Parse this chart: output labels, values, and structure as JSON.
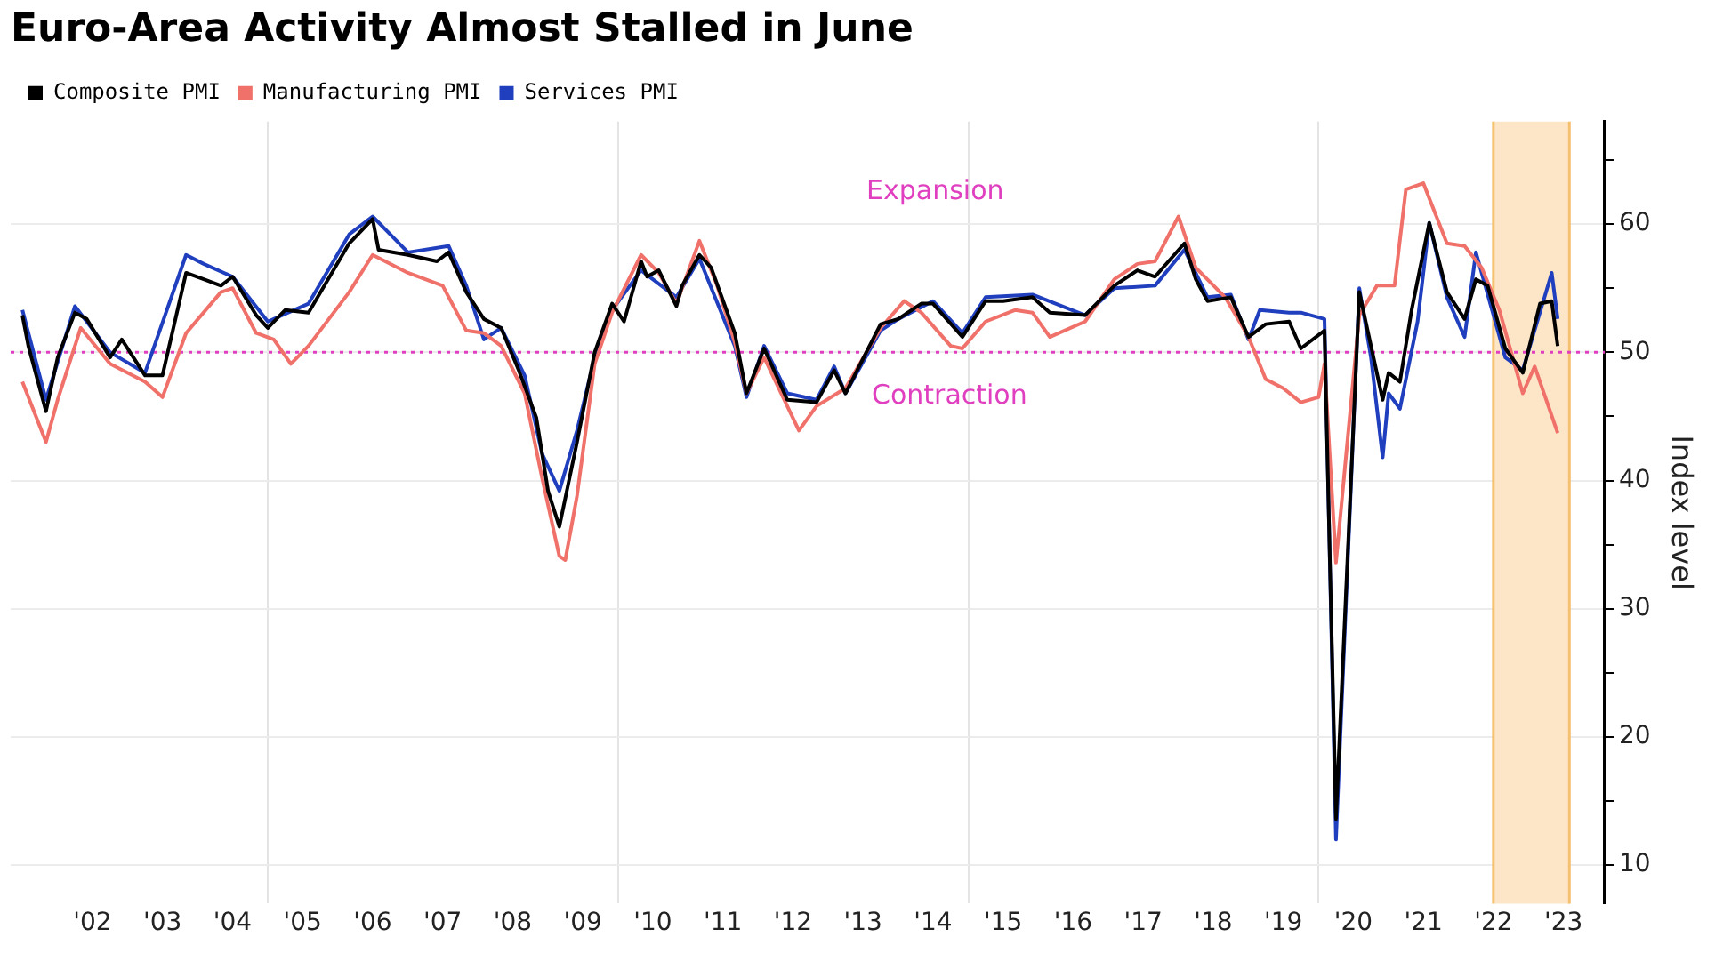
{
  "chart_data": {
    "type": "line",
    "title": "Euro-Area Activity Almost Stalled in June",
    "ylabel": "Index level",
    "xlim": [
      "2001-05",
      "2024-02"
    ],
    "ylim": [
      7,
      68
    ],
    "xticks": [
      {
        "value": "2002-07",
        "label": "'02"
      },
      {
        "value": "2003-07",
        "label": "'03"
      },
      {
        "value": "2004-07",
        "label": "'04"
      },
      {
        "value": "2005-01",
        "label": null
      },
      {
        "value": "2005-07",
        "label": "'05"
      },
      {
        "value": "2006-07",
        "label": "'06"
      },
      {
        "value": "2007-07",
        "label": "'07"
      },
      {
        "value": "2008-07",
        "label": "'08"
      },
      {
        "value": "2009-07",
        "label": "'09"
      },
      {
        "value": "2010-01",
        "label": null
      },
      {
        "value": "2010-07",
        "label": "'10"
      },
      {
        "value": "2011-07",
        "label": "'11"
      },
      {
        "value": "2012-07",
        "label": "'12"
      },
      {
        "value": "2013-07",
        "label": "'13"
      },
      {
        "value": "2014-07",
        "label": "'14"
      },
      {
        "value": "2015-01",
        "label": null
      },
      {
        "value": "2015-07",
        "label": "'15"
      },
      {
        "value": "2016-07",
        "label": "'16"
      },
      {
        "value": "2017-07",
        "label": "'17"
      },
      {
        "value": "2018-07",
        "label": "'18"
      },
      {
        "value": "2019-07",
        "label": "'19"
      },
      {
        "value": "2020-01",
        "label": null
      },
      {
        "value": "2020-07",
        "label": "'20"
      },
      {
        "value": "2021-07",
        "label": "'21"
      },
      {
        "value": "2022-07",
        "label": "'22"
      },
      {
        "value": "2023-07",
        "label": "'23"
      }
    ],
    "yticks": [
      10,
      {
        "value": 15,
        "label": null
      },
      20,
      {
        "value": 25,
        "label": null
      },
      30,
      {
        "value": 35,
        "label": null
      },
      40,
      {
        "value": 45,
        "label": null
      },
      50,
      {
        "value": 55,
        "label": null
      },
      60,
      {
        "value": 65,
        "label": null
      }
    ],
    "grid": true,
    "legend": "top left",
    "line_style": "solid",
    "ref_lines": [
      {
        "axis": "y",
        "value": 50,
        "color": "#e040c0",
        "line_style": "dotted"
      }
    ],
    "bands": [
      {
        "axis": "x",
        "from": "2022-07",
        "to": "2023-08",
        "color": "#fde6c8"
      }
    ],
    "annotations": [
      "Expansion",
      "Contraction"
    ],
    "series": [
      {
        "name": "Composite PMI",
        "color": "#000000",
        "x": [
          "2001-07",
          "2001-08",
          "2001-11",
          "2002-01",
          "2002-04",
          "2002-06",
          "2002-10",
          "2002-12",
          "2003-04",
          "2003-07",
          "2003-11",
          "2004-02",
          "2004-05",
          "2004-07",
          "2004-11",
          "2005-01",
          "2005-04",
          "2005-08",
          "2006-03",
          "2006-07",
          "2006-08",
          "2007-01",
          "2007-06",
          "2007-08",
          "2007-11",
          "2008-02",
          "2008-05",
          "2008-08",
          "2008-11",
          "2009-01",
          "2009-03",
          "2009-06",
          "2009-09",
          "2009-12",
          "2010-02",
          "2010-05",
          "2010-06",
          "2010-08",
          "2010-11",
          "2010-12",
          "2011-03",
          "2011-05",
          "2011-09",
          "2011-11",
          "2012-02",
          "2012-06",
          "2012-11",
          "2013-02",
          "2013-04",
          "2013-10",
          "2014-01",
          "2014-05",
          "2014-07",
          "2014-12",
          "2015-04",
          "2015-07",
          "2015-12",
          "2016-03",
          "2016-09",
          "2017-02",
          "2017-06",
          "2017-09",
          "2018-02",
          "2018-04",
          "2018-06",
          "2018-10",
          "2019-01",
          "2019-04",
          "2019-08",
          "2019-10",
          "2020-02",
          "2020-04",
          "2020-08",
          "2020-10",
          "2020-12",
          "2021-01",
          "2021-03",
          "2021-05",
          "2021-08",
          "2021-11",
          "2022-02",
          "2022-04",
          "2022-06",
          "2022-09",
          "2022-12",
          "2023-03",
          "2023-05",
          "2023-06"
        ],
        "values": [
          52.9,
          50.5,
          45.4,
          49.6,
          53.1,
          52.6,
          49.6,
          51.0,
          48.2,
          48.2,
          56.2,
          55.7,
          55.2,
          55.9,
          52.9,
          51.9,
          53.3,
          53.1,
          58.5,
          60.4,
          58.0,
          57.6,
          57.1,
          57.8,
          54.7,
          52.6,
          51.9,
          48.6,
          44.9,
          39.2,
          36.4,
          43.0,
          50.0,
          53.8,
          52.4,
          57.1,
          55.9,
          56.4,
          53.6,
          55.2,
          57.6,
          56.6,
          51.5,
          46.8,
          50.3,
          46.3,
          46.1,
          48.6,
          46.8,
          52.2,
          52.6,
          53.8,
          53.8,
          51.2,
          54.0,
          54.0,
          54.3,
          53.1,
          52.9,
          55.2,
          56.4,
          55.9,
          58.5,
          55.7,
          54.0,
          54.3,
          51.2,
          52.2,
          52.4,
          50.3,
          51.7,
          13.6,
          54.7,
          50.5,
          46.3,
          48.4,
          47.7,
          53.3,
          60.1,
          54.7,
          52.6,
          55.7,
          55.2,
          50.3,
          48.4,
          53.8,
          54.0,
          50.5
        ]
      },
      {
        "name": "Manufacturing PMI",
        "color": "#f0706a",
        "x": [
          "2001-07",
          "2001-11",
          "2002-01",
          "2002-05",
          "2002-10",
          "2003-04",
          "2003-07",
          "2003-11",
          "2004-05",
          "2004-07",
          "2004-11",
          "2005-02",
          "2005-05",
          "2005-08",
          "2006-03",
          "2006-07",
          "2007-01",
          "2007-07",
          "2007-11",
          "2008-02",
          "2008-05",
          "2008-09",
          "2008-12",
          "2009-03",
          "2009-04",
          "2009-06",
          "2009-09",
          "2009-12",
          "2010-05",
          "2010-08",
          "2010-11",
          "2011-03",
          "2011-06",
          "2011-09",
          "2011-11",
          "2012-02",
          "2012-08",
          "2012-11",
          "2013-04",
          "2013-10",
          "2014-02",
          "2014-05",
          "2014-10",
          "2014-12",
          "2015-04",
          "2015-09",
          "2015-12",
          "2016-03",
          "2016-09",
          "2017-02",
          "2017-06",
          "2017-09",
          "2018-01",
          "2018-04",
          "2018-09",
          "2019-01",
          "2019-04",
          "2019-07",
          "2019-10",
          "2020-01",
          "2020-02",
          "2020-04",
          "2020-08",
          "2020-11",
          "2021-02",
          "2021-04",
          "2021-07",
          "2021-11",
          "2022-02",
          "2022-05",
          "2022-08",
          "2022-12",
          "2023-02",
          "2023-06"
        ],
        "values": [
          47.7,
          43.0,
          46.3,
          51.9,
          49.1,
          47.7,
          46.5,
          51.5,
          54.7,
          55.0,
          51.5,
          51.0,
          49.1,
          50.5,
          54.7,
          57.6,
          56.2,
          55.2,
          51.7,
          51.5,
          50.5,
          46.8,
          40.2,
          34.1,
          33.8,
          38.8,
          49.1,
          53.1,
          57.6,
          56.2,
          53.8,
          58.7,
          55.2,
          50.8,
          46.8,
          49.6,
          43.9,
          45.8,
          47.2,
          51.9,
          54.0,
          53.1,
          50.5,
          50.3,
          52.4,
          53.3,
          53.1,
          51.2,
          52.4,
          55.7,
          56.9,
          57.1,
          60.6,
          56.6,
          54.3,
          51.2,
          47.9,
          47.2,
          46.1,
          46.5,
          49.1,
          33.6,
          52.9,
          55.2,
          55.2,
          62.7,
          63.2,
          58.5,
          58.3,
          56.6,
          53.3,
          46.8,
          48.9,
          43.7
        ]
      },
      {
        "name": "Services PMI",
        "color": "#1f3fbf",
        "x": [
          "2001-07",
          "2001-11",
          "2002-04",
          "2002-10",
          "2003-04",
          "2003-11",
          "2004-02",
          "2004-07",
          "2005-01",
          "2005-08",
          "2006-03",
          "2006-07",
          "2007-01",
          "2007-08",
          "2007-11",
          "2008-02",
          "2008-05",
          "2008-09",
          "2008-12",
          "2009-03",
          "2009-06",
          "2009-09",
          "2009-12",
          "2010-05",
          "2010-11",
          "2011-03",
          "2011-09",
          "2011-11",
          "2012-02",
          "2012-06",
          "2012-11",
          "2013-02",
          "2013-04",
          "2013-10",
          "2014-01",
          "2014-07",
          "2014-12",
          "2015-04",
          "2015-12",
          "2016-09",
          "2017-02",
          "2017-09",
          "2018-02",
          "2018-06",
          "2018-10",
          "2019-01",
          "2019-03",
          "2019-08",
          "2019-10",
          "2020-02",
          "2020-04",
          "2020-08",
          "2020-10",
          "2020-12",
          "2021-01",
          "2021-03",
          "2021-06",
          "2021-08",
          "2021-11",
          "2022-02",
          "2022-04",
          "2022-09",
          "2022-12",
          "2023-05",
          "2023-06"
        ],
        "values": [
          53.3,
          46.3,
          53.6,
          50.0,
          48.4,
          57.6,
          56.9,
          55.9,
          52.4,
          53.8,
          59.2,
          60.6,
          57.8,
          58.3,
          55.2,
          51.0,
          51.9,
          48.2,
          42.1,
          39.2,
          43.9,
          49.6,
          53.3,
          56.4,
          54.3,
          57.3,
          50.5,
          46.5,
          50.5,
          46.8,
          46.3,
          48.9,
          46.8,
          51.7,
          52.6,
          54.0,
          51.5,
          54.3,
          54.5,
          52.9,
          55.0,
          55.2,
          58.0,
          54.3,
          54.5,
          51.0,
          53.3,
          53.1,
          53.1,
          52.6,
          12.0,
          55.0,
          49.6,
          41.8,
          46.8,
          45.6,
          52.4,
          60.1,
          54.3,
          51.2,
          57.8,
          49.6,
          48.6,
          56.2,
          52.6
        ]
      }
    ]
  }
}
